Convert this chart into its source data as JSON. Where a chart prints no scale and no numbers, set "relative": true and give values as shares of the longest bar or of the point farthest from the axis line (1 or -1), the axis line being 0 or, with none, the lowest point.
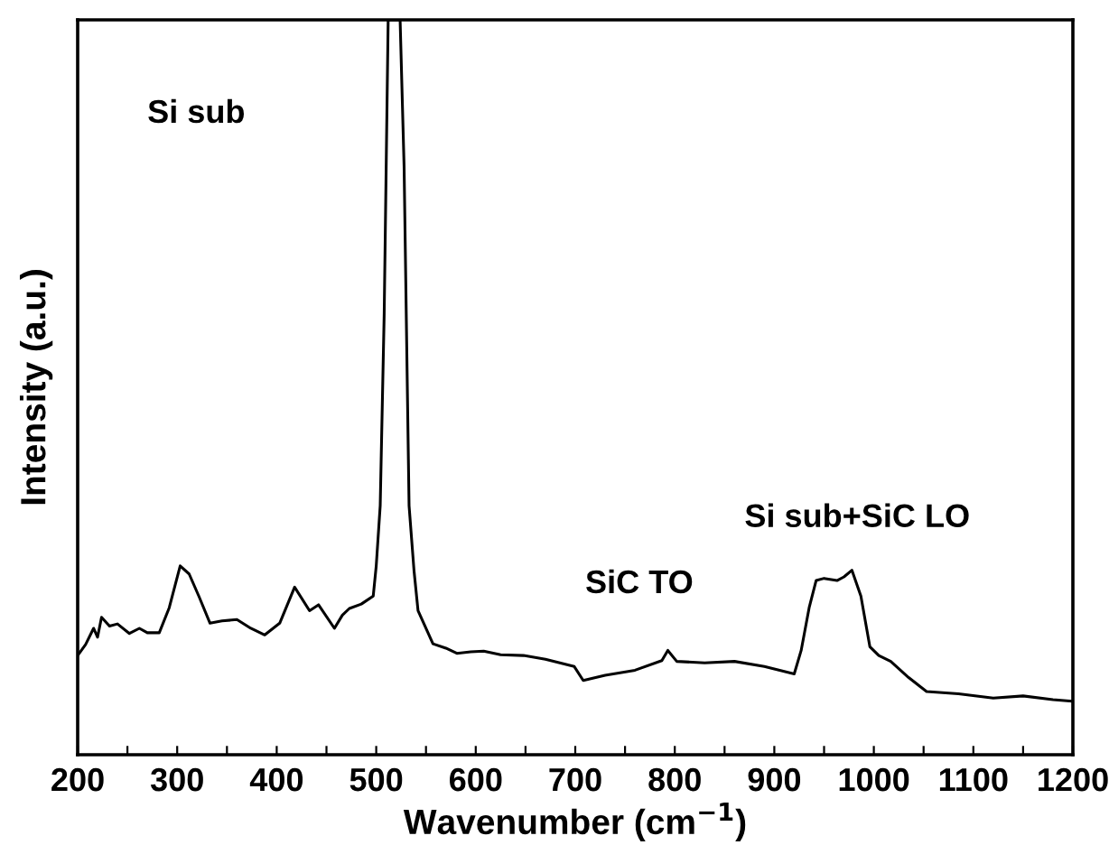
{
  "chart_data": {
    "type": "line",
    "relative": true,
    "xlabel": "Wavenumber (cm$^{−1}$)",
    "ylabel": "Intensity (a.u.)",
    "tick_labels": "x",
    "xlim": [
      200,
      1200
    ],
    "xticks": [
      200,
      {
        "value": 250,
        "label": null
      },
      300,
      {
        "value": 350,
        "label": null
      },
      400,
      {
        "value": 450,
        "label": null
      },
      500,
      {
        "value": 550,
        "label": null
      },
      600,
      {
        "value": 650,
        "label": null
      },
      700,
      {
        "value": 750,
        "label": null
      },
      800,
      {
        "value": 850,
        "label": null
      },
      900,
      {
        "value": 950,
        "label": null
      },
      1000,
      {
        "value": 1050,
        "label": null
      },
      1100,
      {
        "value": 1150,
        "label": null
      },
      1200
    ],
    "annotations": [
      "Si sub",
      "SiC TO",
      "Si sub+SiC LO"
    ],
    "series": [
      {
        "color": "#000000",
        "x": [
          200,
          208,
          216,
          220,
          224,
          232,
          240,
          252,
          262,
          270,
          282,
          292,
          303,
          312,
          322,
          333,
          345,
          360,
          374,
          388,
          403,
          418,
          433,
          442,
          458,
          466,
          473,
          485,
          497,
          500,
          504,
          508,
          512,
          516,
          524,
          528,
          533,
          538,
          542,
          557,
          570,
          581,
          595,
          608,
          625,
          648,
          670,
          699,
          708,
          730,
          760,
          787,
          793,
          802,
          830,
          860,
          890,
          920,
          927,
          935,
          942,
          950,
          963,
          970,
          978,
          987,
          996,
          1005,
          1017,
          1035,
          1053,
          1085,
          1120,
          1150,
          1180,
          1198
        ],
        "values": [
          0.135,
          0.15,
          0.172,
          0.16,
          0.187,
          0.175,
          0.178,
          0.165,
          0.172,
          0.166,
          0.166,
          0.2,
          0.257,
          0.246,
          0.215,
          0.179,
          0.182,
          0.184,
          0.172,
          0.163,
          0.179,
          0.228,
          0.196,
          0.204,
          0.172,
          0.19,
          0.199,
          0.205,
          0.216,
          0.257,
          0.339,
          0.6,
          1.0,
          1.0,
          1.0,
          0.8,
          0.339,
          0.25,
          0.196,
          0.151,
          0.145,
          0.138,
          0.14,
          0.141,
          0.136,
          0.135,
          0.13,
          0.12,
          0.101,
          0.108,
          0.115,
          0.128,
          0.142,
          0.127,
          0.125,
          0.127,
          0.12,
          0.11,
          0.142,
          0.2,
          0.237,
          0.24,
          0.237,
          0.242,
          0.251,
          0.216,
          0.147,
          0.135,
          0.127,
          0.105,
          0.086,
          0.083,
          0.077,
          0.08,
          0.075,
          0.073
        ]
      }
    ]
  }
}
